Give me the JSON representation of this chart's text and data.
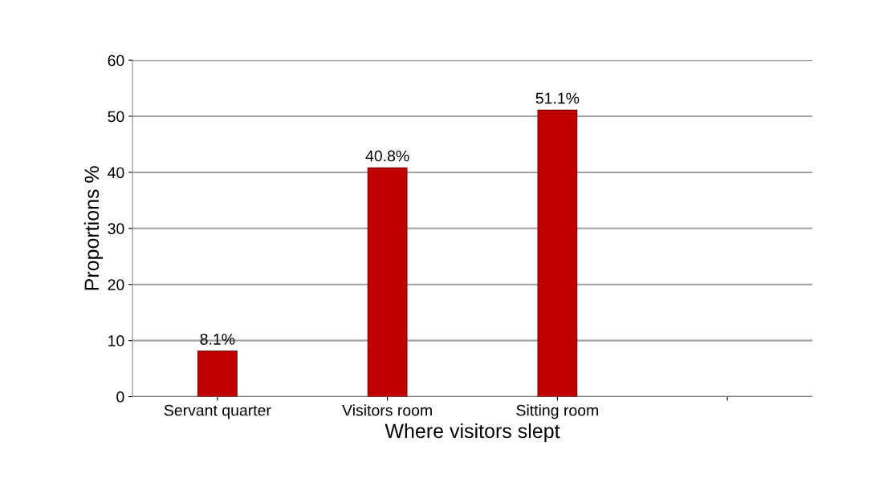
{
  "chart_data": {
    "type": "bar",
    "categories": [
      "Servant quarter",
      "Visitors room",
      "Sitting room",
      null
    ],
    "values": [
      8.1,
      40.8,
      51.1,
      null
    ],
    "value_labels": [
      "8.1%",
      "40.8%",
      "51.1%",
      null
    ],
    "color": "#c00000",
    "xlabel": "Where visitors slept",
    "ylabel": "Proportions %",
    "ylim": [
      0,
      60
    ],
    "yticks": [
      0,
      10,
      20,
      30,
      40,
      50,
      60
    ],
    "grid": "y",
    "legend": false
  }
}
